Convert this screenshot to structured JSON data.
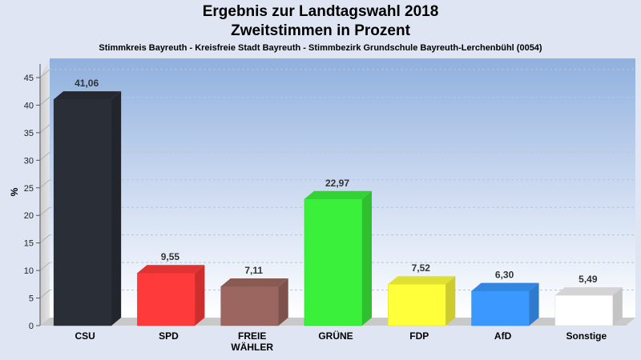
{
  "chart_data": {
    "type": "bar",
    "title": "Ergebnis zur Landtagswahl 2018",
    "subtitle": "Zweitstimmen in Prozent",
    "caption": "Stimmkreis Bayreuth - Kreisfreie Stadt Bayreuth - Stimmbezirk Grundschule Bayreuth-Lerchenbühl (0054)",
    "ylabel": "%",
    "xlabel": "",
    "ylim": [
      0,
      45
    ],
    "yticks": [
      0,
      5,
      10,
      15,
      20,
      25,
      30,
      35,
      40,
      45
    ],
    "grid": true,
    "categories": [
      "CSU",
      "SPD",
      "FREIE WÄHLER",
      "GRÜNE",
      "FDP",
      "AfD",
      "Sonstige"
    ],
    "category_lines": [
      [
        "CSU"
      ],
      [
        "SPD"
      ],
      [
        "FREIE",
        "WÄHLER"
      ],
      [
        "GRÜNE"
      ],
      [
        "FDP"
      ],
      [
        "AfD"
      ],
      [
        "Sonstige"
      ]
    ],
    "values": [
      41.06,
      9.55,
      7.11,
      22.97,
      7.52,
      6.3,
      5.49
    ],
    "value_labels": [
      "41,06",
      "9,55",
      "7,11",
      "22,97",
      "7,52",
      "6,30",
      "5,49"
    ],
    "colors": [
      "#2a2e36",
      "#ff3a3a",
      "#9c6660",
      "#3af03a",
      "#ffff3a",
      "#3a98ff",
      "#ffffff"
    ]
  }
}
